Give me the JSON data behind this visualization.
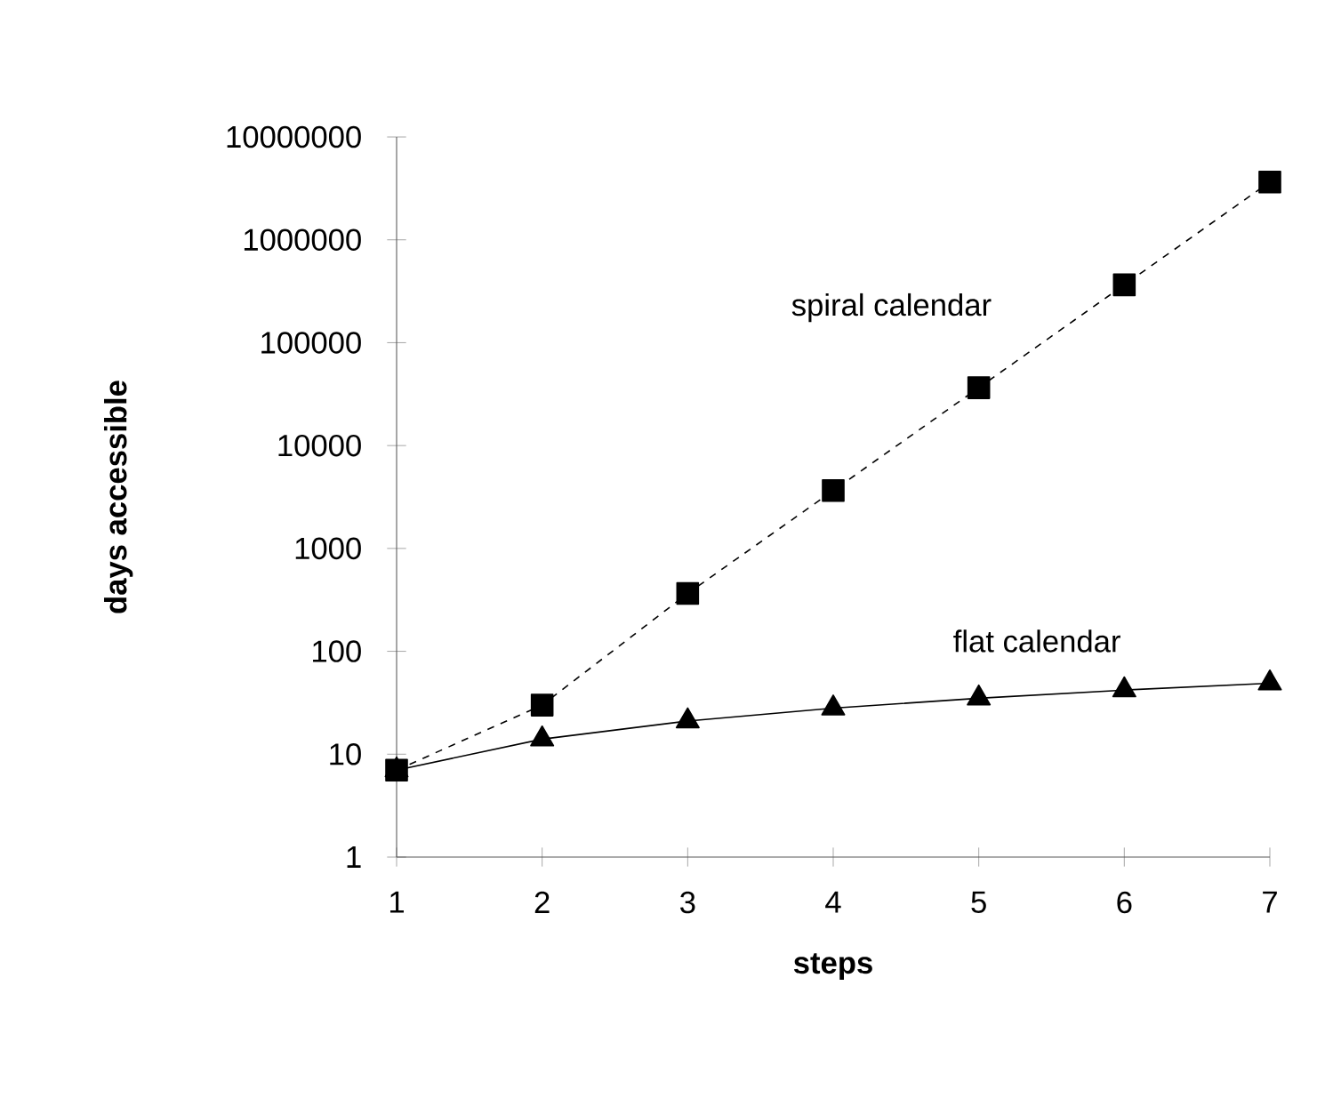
{
  "chart_data": {
    "type": "line",
    "xlabel": "steps",
    "ylabel": "days accessible",
    "log": "y",
    "x": [
      1,
      2,
      3,
      4,
      5,
      6,
      7
    ],
    "xlim": [
      1,
      7
    ],
    "xticks": [
      1,
      2,
      3,
      4,
      5,
      6,
      7
    ],
    "ylim": [
      1,
      10000000
    ],
    "yticks": [
      1,
      10,
      100,
      1000,
      10000,
      100000,
      1000000,
      10000000
    ],
    "series": [
      {
        "name": "flat calendar",
        "color": "#000000",
        "marker": "triangle",
        "line_style": "solid",
        "values": [
          7,
          14,
          21,
          28,
          35,
          42,
          49
        ]
      },
      {
        "name": "spiral calendar",
        "color": "#000000",
        "marker": "square",
        "line_style": "dashed",
        "values": [
          7,
          30,
          365,
          3650,
          36500,
          365000,
          3650000
        ]
      }
    ]
  }
}
